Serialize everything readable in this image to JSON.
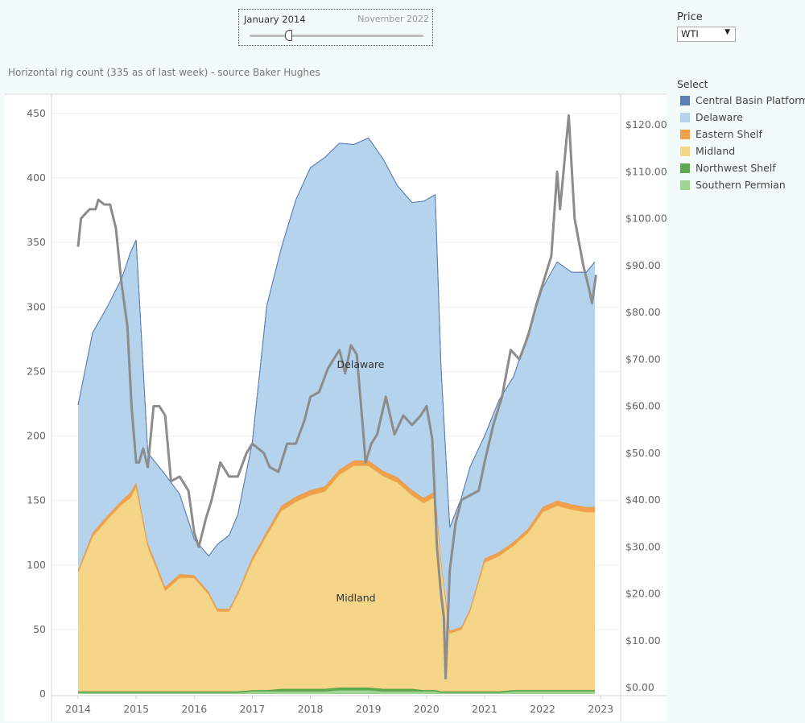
{
  "slider": {
    "start_label": "January 2014",
    "end_label": "November 2022"
  },
  "price_filter": {
    "label": "Price",
    "selected": "WTI"
  },
  "chart_title": "Horizontal rig count (335 as of last week) - source Baker Hughes",
  "legend": {
    "title": "Select",
    "items": [
      {
        "label": "Central Basin Platform",
        "color": "#5b7fb3"
      },
      {
        "label": "Delaware",
        "color": "#b6d3ee"
      },
      {
        "label": "Eastern Shelf",
        "color": "#f0a04b"
      },
      {
        "label": "Midland",
        "color": "#f5d588"
      },
      {
        "label": "Northwest Shelf",
        "color": "#5ea84e"
      },
      {
        "label": "Southern Permian",
        "color": "#9fd592"
      }
    ]
  },
  "chart_data": {
    "type": "area",
    "title": "Horizontal rig count (335 as of last week) - source Baker Hughes",
    "xlabel": "",
    "ylabel": "",
    "x_ticks": [
      "2014",
      "2015",
      "2016",
      "2017",
      "2018",
      "2019",
      "2020",
      "2021",
      "2022",
      "2023"
    ],
    "y_left_ticks": [
      "0",
      "50",
      "100",
      "150",
      "200",
      "250",
      "300",
      "350",
      "400",
      "450"
    ],
    "y_left_range": [
      0,
      450
    ],
    "y_right_ticks": [
      "$0.00",
      "$10.00",
      "$20.00",
      "$30.00",
      "$40.00",
      "$50.00",
      "$60.00",
      "$70.00",
      "$80.00",
      "$90.00",
      "$100.00",
      "$110.00",
      "$120.00"
    ],
    "y_right_range": [
      0,
      120
    ],
    "grid": true,
    "legend_position": "right",
    "x": [
      2014.0,
      2014.25,
      2014.5,
      2014.75,
      2014.9,
      2015.0,
      2015.2,
      2015.5,
      2015.75,
      2016.0,
      2016.25,
      2016.4,
      2016.6,
      2016.75,
      2017.0,
      2017.25,
      2017.5,
      2017.75,
      2018.0,
      2018.25,
      2018.5,
      2018.75,
      2019.0,
      2019.25,
      2019.5,
      2019.75,
      2019.95,
      2020.15,
      2020.25,
      2020.4,
      2020.6,
      2020.75,
      2021.0,
      2021.25,
      2021.5,
      2021.75,
      2022.0,
      2022.25,
      2022.5,
      2022.75,
      2022.9
    ],
    "series": [
      {
        "name": "Southern Permian",
        "values": [
          1,
          1,
          1,
          1,
          1,
          1,
          1,
          1,
          1,
          1,
          1,
          1,
          1,
          1,
          2,
          2,
          2,
          2,
          2,
          2,
          3,
          3,
          3,
          2,
          2,
          2,
          2,
          2,
          1,
          1,
          1,
          1,
          1,
          1,
          2,
          2,
          2,
          2,
          2,
          2,
          2
        ]
      },
      {
        "name": "Northwest Shelf",
        "values": [
          1,
          1,
          1,
          1,
          1,
          1,
          1,
          1,
          1,
          1,
          1,
          1,
          1,
          1,
          1,
          1,
          2,
          2,
          2,
          2,
          2,
          2,
          2,
          2,
          2,
          2,
          1,
          1,
          1,
          1,
          1,
          1,
          1,
          1,
          1,
          1,
          1,
          1,
          1,
          1,
          1
        ]
      },
      {
        "name": "Midland",
        "values": [
          92,
          120,
          133,
          145,
          150,
          158,
          112,
          78,
          88,
          88,
          75,
          62,
          62,
          75,
          100,
          120,
          138,
          145,
          150,
          153,
          165,
          172,
          172,
          165,
          160,
          150,
          145,
          150,
          100,
          45,
          48,
          62,
          100,
          105,
          112,
          122,
          138,
          143,
          140,
          138,
          138
        ]
      },
      {
        "name": "Eastern Shelf",
        "values": [
          2,
          3,
          3,
          3,
          4,
          4,
          3,
          3,
          3,
          2,
          2,
          2,
          2,
          2,
          3,
          3,
          4,
          4,
          4,
          4,
          4,
          4,
          4,
          4,
          4,
          4,
          4,
          4,
          2,
          2,
          2,
          2,
          3,
          3,
          3,
          3,
          4,
          4,
          4,
          4,
          4
        ]
      },
      {
        "name": "Delaware",
        "values": [
          128,
          155,
          162,
          172,
          186,
          188,
          70,
          87,
          62,
          28,
          28,
          50,
          57,
          60,
          89,
          175,
          200,
          230,
          250,
          255,
          253,
          245,
          250,
          242,
          226,
          223,
          230,
          230,
          150,
          80,
          100,
          110,
          95,
          118,
          128,
          152,
          170,
          185,
          180,
          182,
          190
        ]
      },
      {
        "name": "Central Basin Platform",
        "values": [
          0,
          0,
          0,
          0,
          0,
          0,
          0,
          0,
          0,
          0,
          0,
          0,
          0,
          0,
          0,
          0,
          0,
          0,
          0,
          0,
          0,
          0,
          0,
          0,
          0,
          0,
          0,
          0,
          0,
          0,
          0,
          0,
          0,
          0,
          0,
          0,
          0,
          0,
          0,
          0,
          0
        ]
      }
    ],
    "price_series": {
      "name": "WTI",
      "x": [
        2014.0,
        2014.05,
        2014.12,
        2014.2,
        2014.3,
        2014.35,
        2014.45,
        2014.55,
        2014.65,
        2014.75,
        2014.85,
        2014.92,
        2015.0,
        2015.05,
        2015.12,
        2015.2,
        2015.3,
        2015.4,
        2015.5,
        2015.6,
        2015.75,
        2015.9,
        2016.0,
        2016.08,
        2016.2,
        2016.3,
        2016.45,
        2016.6,
        2016.75,
        2016.9,
        2017.0,
        2017.2,
        2017.3,
        2017.45,
        2017.6,
        2017.75,
        2017.9,
        2018.0,
        2018.15,
        2018.3,
        2018.4,
        2018.5,
        2018.6,
        2018.7,
        2018.8,
        2018.9,
        2018.95,
        2019.05,
        2019.15,
        2019.3,
        2019.45,
        2019.6,
        2019.75,
        2019.9,
        2020.0,
        2020.1,
        2020.18,
        2020.25,
        2020.3,
        2020.33,
        2020.4,
        2020.5,
        2020.6,
        2020.75,
        2020.9,
        2021.0,
        2021.15,
        2021.3,
        2021.45,
        2021.6,
        2021.75,
        2021.9,
        2022.05,
        2022.15,
        2022.25,
        2022.3,
        2022.45,
        2022.55,
        2022.7,
        2022.8,
        2022.85,
        2022.92
      ],
      "values": [
        94,
        100,
        101,
        102,
        102,
        104,
        103,
        103,
        98,
        86,
        77,
        60,
        48,
        48,
        51,
        47,
        60,
        60,
        58,
        44,
        45,
        42,
        33,
        30,
        36,
        40,
        48,
        45,
        45,
        50,
        52,
        50,
        47,
        46,
        52,
        52,
        57,
        62,
        63,
        68,
        70,
        72,
        67,
        73,
        71,
        56,
        48,
        52,
        54,
        62,
        54,
        58,
        56,
        58,
        60,
        53,
        30,
        20,
        15,
        2,
        25,
        35,
        40,
        41,
        42,
        48,
        56,
        62,
        72,
        70,
        75,
        82,
        88,
        92,
        110,
        102,
        122,
        100,
        90,
        85,
        82,
        88
      ]
    }
  },
  "labels": {
    "delaware": "Delaware",
    "midland": "Midland"
  }
}
